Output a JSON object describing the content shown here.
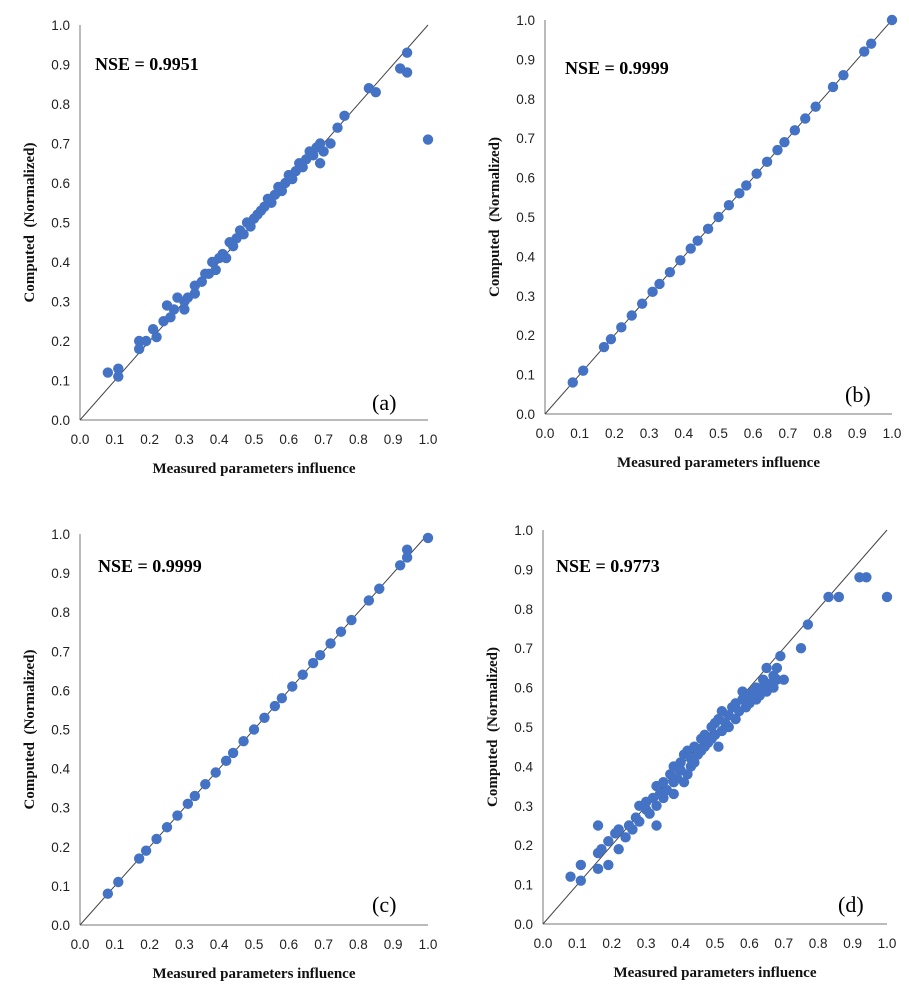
{
  "chart_data": [
    {
      "type": "scatter",
      "panel_label": "(a)",
      "annotation": "NSE = 0.9951",
      "xlabel": "Measured parameters influence",
      "ylabel": "Computed  (Normalized)",
      "xlim": [
        0,
        1
      ],
      "ylim": [
        0,
        1
      ],
      "x_ticks": [
        "0.0",
        "0.1",
        "0.2",
        "0.3",
        "0.4",
        "0.5",
        "0.6",
        "0.7",
        "0.8",
        "0.9",
        "1.0"
      ],
      "y_ticks": [
        "0.0",
        "0.1",
        "0.2",
        "0.3",
        "0.4",
        "0.5",
        "0.6",
        "0.7",
        "0.8",
        "0.9",
        "1.0"
      ],
      "reference_line": "y = x",
      "points": [
        [
          0.08,
          0.12
        ],
        [
          0.11,
          0.13
        ],
        [
          0.11,
          0.11
        ],
        [
          0.17,
          0.2
        ],
        [
          0.17,
          0.18
        ],
        [
          0.19,
          0.2
        ],
        [
          0.21,
          0.23
        ],
        [
          0.22,
          0.21
        ],
        [
          0.24,
          0.25
        ],
        [
          0.25,
          0.29
        ],
        [
          0.26,
          0.26
        ],
        [
          0.27,
          0.28
        ],
        [
          0.28,
          0.31
        ],
        [
          0.3,
          0.3
        ],
        [
          0.31,
          0.31
        ],
        [
          0.3,
          0.28
        ],
        [
          0.33,
          0.34
        ],
        [
          0.33,
          0.32
        ],
        [
          0.35,
          0.35
        ],
        [
          0.36,
          0.37
        ],
        [
          0.37,
          0.37
        ],
        [
          0.38,
          0.4
        ],
        [
          0.39,
          0.38
        ],
        [
          0.4,
          0.41
        ],
        [
          0.41,
          0.42
        ],
        [
          0.42,
          0.41
        ],
        [
          0.43,
          0.45
        ],
        [
          0.44,
          0.44
        ],
        [
          0.45,
          0.46
        ],
        [
          0.46,
          0.48
        ],
        [
          0.47,
          0.47
        ],
        [
          0.48,
          0.5
        ],
        [
          0.49,
          0.49
        ],
        [
          0.5,
          0.51
        ],
        [
          0.51,
          0.52
        ],
        [
          0.52,
          0.53
        ],
        [
          0.53,
          0.54
        ],
        [
          0.54,
          0.56
        ],
        [
          0.55,
          0.55
        ],
        [
          0.56,
          0.57
        ],
        [
          0.57,
          0.59
        ],
        [
          0.58,
          0.58
        ],
        [
          0.59,
          0.6
        ],
        [
          0.6,
          0.62
        ],
        [
          0.61,
          0.61
        ],
        [
          0.62,
          0.63
        ],
        [
          0.63,
          0.65
        ],
        [
          0.64,
          0.64
        ],
        [
          0.65,
          0.66
        ],
        [
          0.66,
          0.68
        ],
        [
          0.67,
          0.67
        ],
        [
          0.68,
          0.69
        ],
        [
          0.69,
          0.7
        ],
        [
          0.69,
          0.65
        ],
        [
          0.7,
          0.68
        ],
        [
          0.72,
          0.7
        ],
        [
          0.74,
          0.74
        ],
        [
          0.76,
          0.77
        ],
        [
          0.83,
          0.84
        ],
        [
          0.85,
          0.83
        ],
        [
          0.92,
          0.89
        ],
        [
          0.94,
          0.93
        ],
        [
          0.94,
          0.88
        ],
        [
          1.0,
          0.71
        ]
      ]
    },
    {
      "type": "scatter",
      "panel_label": "(b)",
      "annotation": "NSE = 0.9999",
      "xlabel": "Measured parameters influence",
      "ylabel": "Computed  (Normalized)",
      "xlim": [
        0,
        1
      ],
      "ylim": [
        0,
        1
      ],
      "x_ticks": [
        "0.0",
        "0.1",
        "0.2",
        "0.3",
        "0.4",
        "0.5",
        "0.6",
        "0.7",
        "0.8",
        "0.9",
        "1.0"
      ],
      "y_ticks": [
        "0.0",
        "0.1",
        "0.2",
        "0.3",
        "0.4",
        "0.5",
        "0.6",
        "0.7",
        "0.8",
        "0.9",
        "1.0"
      ],
      "reference_line": "y = x",
      "points": [
        [
          0.08,
          0.08
        ],
        [
          0.11,
          0.11
        ],
        [
          0.17,
          0.17
        ],
        [
          0.19,
          0.19
        ],
        [
          0.22,
          0.22
        ],
        [
          0.25,
          0.25
        ],
        [
          0.28,
          0.28
        ],
        [
          0.31,
          0.31
        ],
        [
          0.33,
          0.33
        ],
        [
          0.36,
          0.36
        ],
        [
          0.39,
          0.39
        ],
        [
          0.42,
          0.42
        ],
        [
          0.44,
          0.44
        ],
        [
          0.47,
          0.47
        ],
        [
          0.5,
          0.5
        ],
        [
          0.53,
          0.53
        ],
        [
          0.56,
          0.56
        ],
        [
          0.58,
          0.58
        ],
        [
          0.61,
          0.61
        ],
        [
          0.64,
          0.64
        ],
        [
          0.67,
          0.67
        ],
        [
          0.69,
          0.69
        ],
        [
          0.72,
          0.72
        ],
        [
          0.75,
          0.75
        ],
        [
          0.78,
          0.78
        ],
        [
          0.83,
          0.83
        ],
        [
          0.86,
          0.86
        ],
        [
          0.92,
          0.92
        ],
        [
          0.94,
          0.94
        ],
        [
          1.0,
          1.0
        ]
      ]
    },
    {
      "type": "scatter",
      "panel_label": "(c)",
      "annotation": "NSE = 0.9999",
      "xlabel": "Measured parameters influence",
      "ylabel": "Computed  (Normalized)",
      "xlim": [
        0,
        1
      ],
      "ylim": [
        0,
        1
      ],
      "x_ticks": [
        "0.0",
        "0.1",
        "0.2",
        "0.3",
        "0.4",
        "0.5",
        "0.6",
        "0.7",
        "0.8",
        "0.9",
        "1.0"
      ],
      "y_ticks": [
        "0.0",
        "0.1",
        "0.2",
        "0.3",
        "0.4",
        "0.5",
        "0.6",
        "0.7",
        "0.8",
        "0.9",
        "1.0"
      ],
      "reference_line": "y = x",
      "points": [
        [
          0.08,
          0.08
        ],
        [
          0.11,
          0.11
        ],
        [
          0.17,
          0.17
        ],
        [
          0.19,
          0.19
        ],
        [
          0.22,
          0.22
        ],
        [
          0.25,
          0.25
        ],
        [
          0.28,
          0.28
        ],
        [
          0.31,
          0.31
        ],
        [
          0.33,
          0.33
        ],
        [
          0.36,
          0.36
        ],
        [
          0.39,
          0.39
        ],
        [
          0.42,
          0.42
        ],
        [
          0.44,
          0.44
        ],
        [
          0.47,
          0.47
        ],
        [
          0.5,
          0.5
        ],
        [
          0.53,
          0.53
        ],
        [
          0.56,
          0.56
        ],
        [
          0.58,
          0.58
        ],
        [
          0.61,
          0.61
        ],
        [
          0.64,
          0.64
        ],
        [
          0.67,
          0.67
        ],
        [
          0.69,
          0.69
        ],
        [
          0.72,
          0.72
        ],
        [
          0.75,
          0.75
        ],
        [
          0.78,
          0.78
        ],
        [
          0.83,
          0.83
        ],
        [
          0.86,
          0.86
        ],
        [
          0.92,
          0.92
        ],
        [
          0.94,
          0.94
        ],
        [
          0.94,
          0.96
        ],
        [
          1.0,
          0.99
        ]
      ]
    },
    {
      "type": "scatter",
      "panel_label": "(d)",
      "annotation": "NSE = 0.9773",
      "xlabel": "Measured parameters influence",
      "ylabel": "Computed  (Normalized)",
      "xlim": [
        0,
        1
      ],
      "ylim": [
        0,
        1
      ],
      "x_ticks": [
        "0.0",
        "0.1",
        "0.2",
        "0.3",
        "0.4",
        "0.5",
        "0.6",
        "0.7",
        "0.8",
        "0.9",
        "1.0"
      ],
      "y_ticks": [
        "0.0",
        "0.1",
        "0.2",
        "0.3",
        "0.4",
        "0.5",
        "0.6",
        "0.7",
        "0.8",
        "0.9",
        "1.0"
      ],
      "reference_line": "y = x",
      "points": [
        [
          0.08,
          0.12
        ],
        [
          0.11,
          0.15
        ],
        [
          0.11,
          0.11
        ],
        [
          0.16,
          0.25
        ],
        [
          0.16,
          0.18
        ],
        [
          0.16,
          0.14
        ],
        [
          0.17,
          0.19
        ],
        [
          0.19,
          0.15
        ],
        [
          0.19,
          0.21
        ],
        [
          0.21,
          0.23
        ],
        [
          0.22,
          0.19
        ],
        [
          0.22,
          0.24
        ],
        [
          0.24,
          0.22
        ],
        [
          0.25,
          0.25
        ],
        [
          0.26,
          0.24
        ],
        [
          0.27,
          0.27
        ],
        [
          0.28,
          0.3
        ],
        [
          0.28,
          0.26
        ],
        [
          0.3,
          0.29
        ],
        [
          0.3,
          0.31
        ],
        [
          0.31,
          0.28
        ],
        [
          0.32,
          0.32
        ],
        [
          0.33,
          0.35
        ],
        [
          0.33,
          0.3
        ],
        [
          0.33,
          0.25
        ],
        [
          0.34,
          0.33
        ],
        [
          0.35,
          0.36
        ],
        [
          0.35,
          0.32
        ],
        [
          0.36,
          0.34
        ],
        [
          0.37,
          0.38
        ],
        [
          0.38,
          0.36
        ],
        [
          0.38,
          0.4
        ],
        [
          0.38,
          0.33
        ],
        [
          0.39,
          0.37
        ],
        [
          0.4,
          0.41
        ],
        [
          0.4,
          0.39
        ],
        [
          0.41,
          0.43
        ],
        [
          0.41,
          0.36
        ],
        [
          0.42,
          0.38
        ],
        [
          0.42,
          0.44
        ],
        [
          0.43,
          0.42
        ],
        [
          0.43,
          0.4
        ],
        [
          0.44,
          0.45
        ],
        [
          0.44,
          0.41
        ],
        [
          0.45,
          0.43
        ],
        [
          0.46,
          0.47
        ],
        [
          0.46,
          0.44
        ],
        [
          0.47,
          0.48
        ],
        [
          0.47,
          0.45
        ],
        [
          0.48,
          0.46
        ],
        [
          0.49,
          0.5
        ],
        [
          0.49,
          0.47
        ],
        [
          0.5,
          0.51
        ],
        [
          0.5,
          0.48
        ],
        [
          0.51,
          0.45
        ],
        [
          0.51,
          0.52
        ],
        [
          0.52,
          0.49
        ],
        [
          0.52,
          0.54
        ],
        [
          0.53,
          0.51
        ],
        [
          0.54,
          0.53
        ],
        [
          0.54,
          0.5
        ],
        [
          0.55,
          0.55
        ],
        [
          0.56,
          0.52
        ],
        [
          0.56,
          0.56
        ],
        [
          0.57,
          0.54
        ],
        [
          0.58,
          0.57
        ],
        [
          0.58,
          0.59
        ],
        [
          0.59,
          0.55
        ],
        [
          0.6,
          0.58
        ],
        [
          0.6,
          0.56
        ],
        [
          0.61,
          0.59
        ],
        [
          0.62,
          0.6
        ],
        [
          0.62,
          0.57
        ],
        [
          0.63,
          0.58
        ],
        [
          0.64,
          0.6
        ],
        [
          0.64,
          0.62
        ],
        [
          0.65,
          0.59
        ],
        [
          0.65,
          0.65
        ],
        [
          0.66,
          0.61
        ],
        [
          0.67,
          0.63
        ],
        [
          0.67,
          0.6
        ],
        [
          0.68,
          0.62
        ],
        [
          0.68,
          0.65
        ],
        [
          0.69,
          0.68
        ],
        [
          0.7,
          0.62
        ],
        [
          0.75,
          0.7
        ],
        [
          0.77,
          0.76
        ],
        [
          0.83,
          0.83
        ],
        [
          0.86,
          0.83
        ],
        [
          0.92,
          0.88
        ],
        [
          0.94,
          0.88
        ],
        [
          1.0,
          0.83
        ]
      ]
    }
  ]
}
